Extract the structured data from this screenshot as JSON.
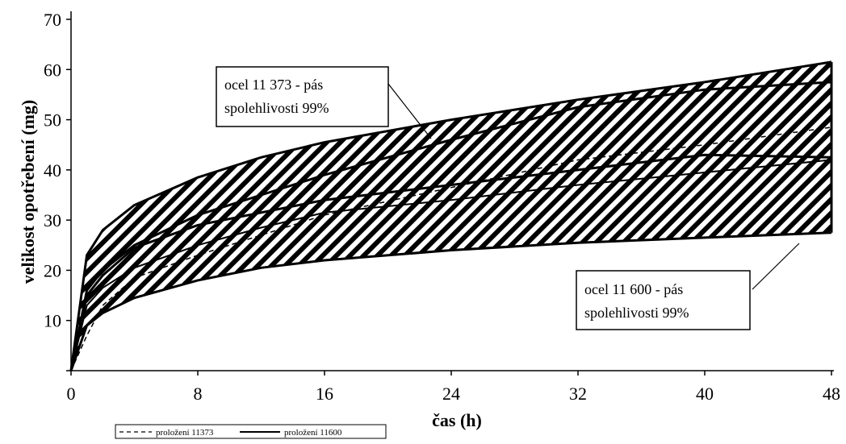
{
  "chart_data": {
    "type": "line",
    "title": "",
    "xlabel": "čas (h)",
    "ylabel": "velikost opotřebení (mg)",
    "xlim": [
      0,
      48
    ],
    "ylim": [
      0,
      70
    ],
    "x_ticks": [
      "0",
      "8",
      "16",
      "24",
      "32",
      "40",
      "48"
    ],
    "y_ticks": [
      "10",
      "20",
      "30",
      "40",
      "50",
      "60",
      "70"
    ],
    "x": [
      0,
      1,
      2,
      4,
      8,
      12,
      16,
      24,
      32,
      40,
      48
    ],
    "bands": [
      {
        "annotation_line1": "ocel 11 373 - pás",
        "annotation_line2": "spolehlivosti 99%",
        "upper": [
          0,
          23,
          28,
          33,
          38.5,
          42.5,
          45.5,
          50,
          54,
          57.5,
          61.5
        ],
        "lower": [
          0,
          15,
          19,
          24.5,
          29,
          31.5,
          34,
          37,
          40,
          43,
          42.5
        ]
      },
      {
        "annotation_line1": "ocel 11 600 - pás",
        "annotation_line2": "spolehlivosti 99%",
        "upper": [
          0,
          16,
          20,
          25,
          31,
          35,
          39,
          46,
          52.5,
          56,
          57.5
        ],
        "lower": [
          0,
          9,
          11.5,
          14.5,
          18,
          20.5,
          22,
          24,
          25.5,
          26.5,
          27.5
        ]
      }
    ],
    "series": [
      {
        "name": "proložení 11373",
        "style": "dashed",
        "values": [
          0,
          7,
          13,
          18.5,
          23,
          27,
          31,
          36.5,
          42,
          45,
          48.5
        ]
      },
      {
        "name": "proložení 11600",
        "style": "solid",
        "values": [
          0,
          13,
          16.5,
          20.5,
          25,
          28.5,
          31.5,
          34,
          37,
          39.5,
          42
        ]
      }
    ],
    "legend": "bottom-left",
    "grid": false,
    "hatch": "diagonal"
  }
}
